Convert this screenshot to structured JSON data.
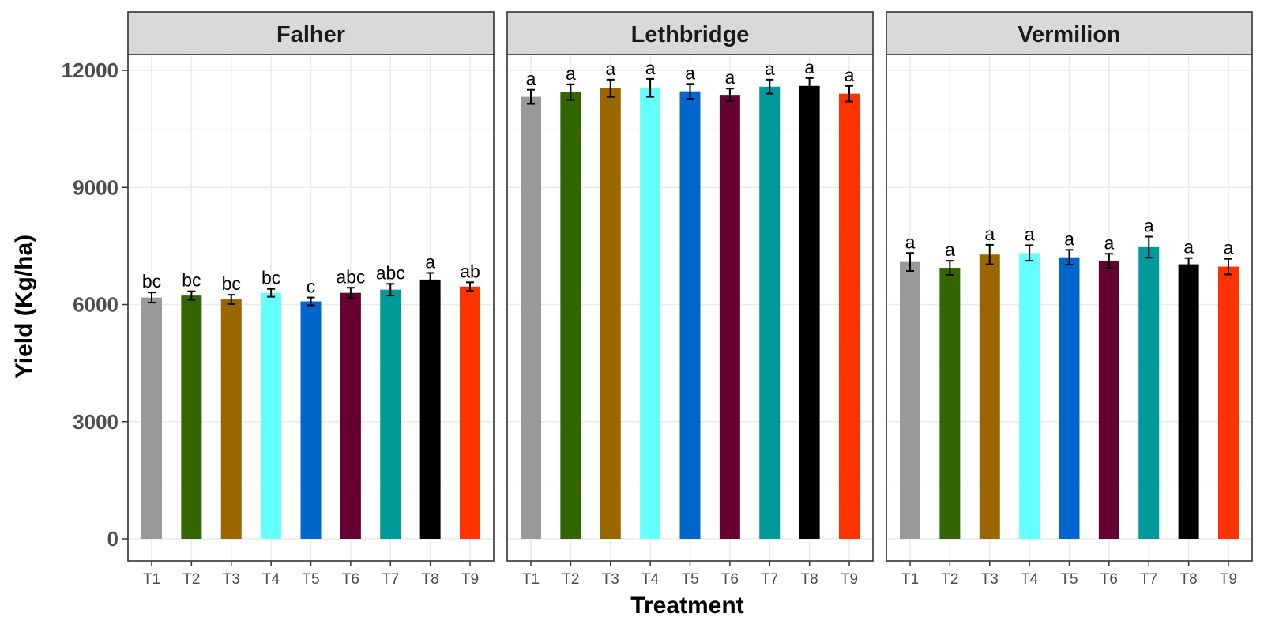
{
  "chart_data": {
    "type": "bar",
    "facet_by": "location",
    "xlabel": "Treatment",
    "ylabel": "Yield (Kg/ha)",
    "ylim": [
      0,
      12500
    ],
    "yticks": [
      0,
      3000,
      6000,
      9000,
      12000
    ],
    "grid": true,
    "categories": [
      "T1",
      "T2",
      "T3",
      "T4",
      "T5",
      "T6",
      "T7",
      "T8",
      "T9"
    ],
    "colors": [
      "#999999",
      "#336600",
      "#996600",
      "#66FFFF",
      "#0066CC",
      "#660033",
      "#009999",
      "#000000",
      "#FF3300"
    ],
    "facets": [
      {
        "name": "Falher",
        "values": [
          6180,
          6230,
          6130,
          6300,
          6080,
          6300,
          6380,
          6640,
          6460
        ],
        "errors": [
          130,
          110,
          120,
          100,
          100,
          130,
          150,
          170,
          110
        ],
        "letters": [
          "bc",
          "bc",
          "bc",
          "bc",
          "c",
          "abc",
          "abc",
          "a",
          "ab"
        ]
      },
      {
        "name": "Lethbridge",
        "values": [
          11320,
          11440,
          11540,
          11550,
          11460,
          11370,
          11580,
          11600,
          11400
        ],
        "errors": [
          180,
          200,
          220,
          230,
          190,
          160,
          180,
          200,
          200
        ],
        "letters": [
          "a",
          "a",
          "a",
          "a",
          "a",
          "a",
          "a",
          "a",
          "a"
        ]
      },
      {
        "name": "Vermilion",
        "values": [
          7090,
          6940,
          7280,
          7320,
          7210,
          7120,
          7470,
          7030,
          6970
        ],
        "errors": [
          230,
          180,
          250,
          200,
          190,
          180,
          270,
          160,
          200
        ],
        "letters": [
          "a",
          "a",
          "a",
          "a",
          "a",
          "a",
          "a",
          "a",
          "a"
        ]
      }
    ]
  }
}
